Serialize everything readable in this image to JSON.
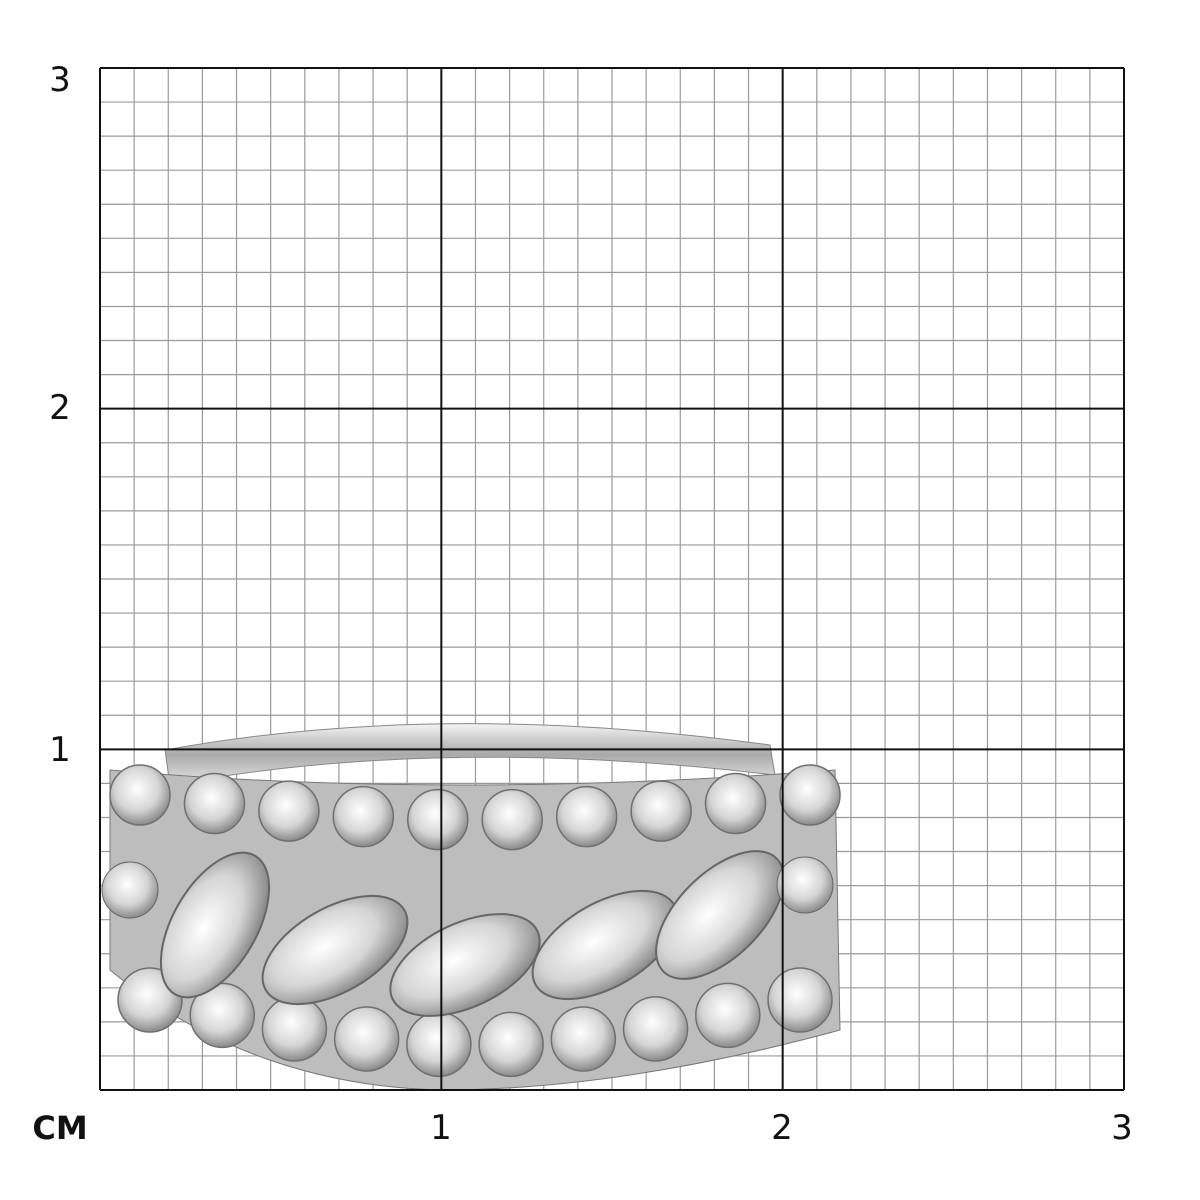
{
  "scale": {
    "unit_label": "CM",
    "x_tick_labels": [
      "1",
      "2",
      "3"
    ],
    "y_tick_labels": [
      "1",
      "2",
      "3"
    ],
    "range_cm": [
      0,
      3
    ],
    "subdivisions_per_cm": 10
  },
  "colors": {
    "major_grid": "#111111",
    "minor_grid": "#9a9a9a",
    "metal": "#c8c8c8"
  },
  "product": {
    "icon": "diamond-ring-image"
  }
}
